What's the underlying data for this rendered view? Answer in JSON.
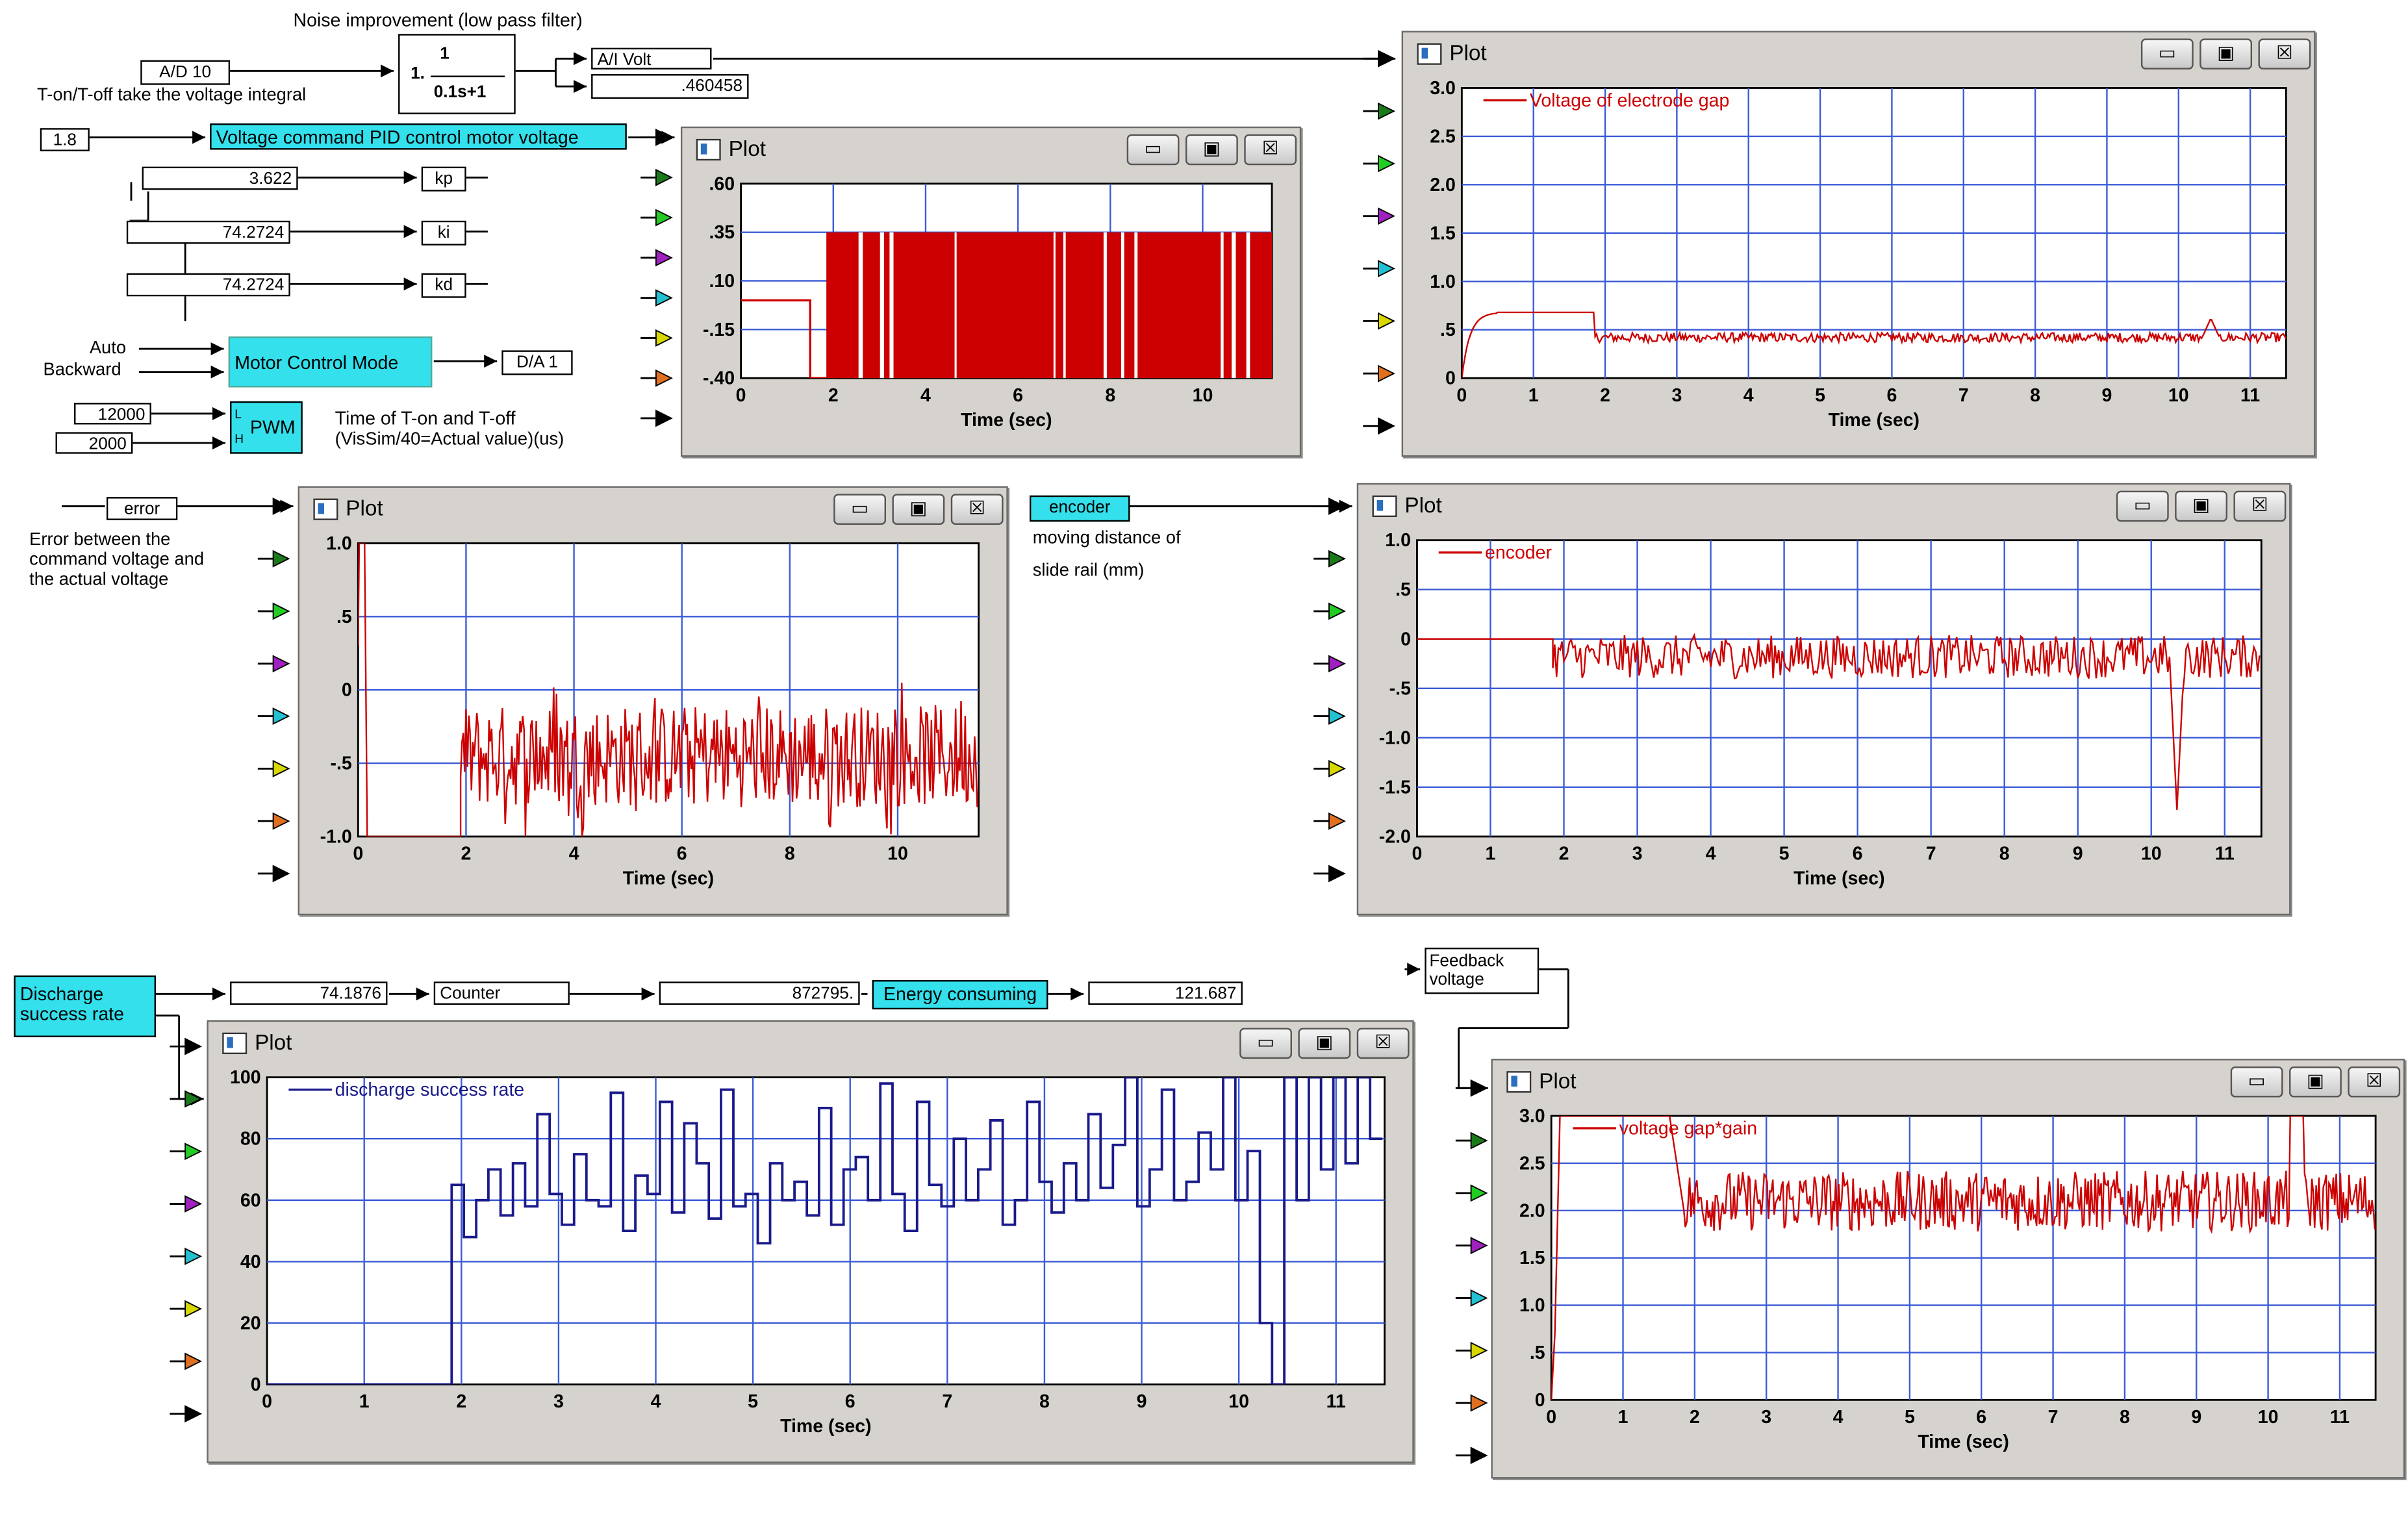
{
  "block_diagram": {
    "noise_title": "Noise improvement (low pass filter)",
    "ad10": "A/D 10",
    "ton_note": "T-on/T-off take the voltage integral",
    "tf_num": "1",
    "tf_prefix": "1.",
    "tf_den": "0.1s+1",
    "ai_volt": "A/I Volt",
    "ai_value": ".460458",
    "cmd_value": "1.8",
    "pid_label": "Voltage command PID control motor voltage",
    "kp_value": "3.622",
    "kp": "kp",
    "ki_value": "74.2724",
    "ki": "ki",
    "kd_value": "74.2724",
    "kd": "kd",
    "auto": "Auto",
    "backward": "Backward",
    "motor_mode": "Motor Control Mode",
    "da1": "D/A 1",
    "pwm_high": "12000",
    "pwm_low": "2000",
    "pwm_l": "L",
    "pwm_h": "H",
    "pwm": "PWM",
    "timing_note_1": "Time of T-on and T-off",
    "timing_note_2": "(VisSim/40=Actual value)(us)",
    "error_block": "error",
    "error_note_1": "Error between the",
    "error_note_2": "command voltage and",
    "error_note_3": "the actual voltage",
    "encoder_block": "encoder",
    "encoder_note_1": "moving distance of",
    "encoder_note_2": "slide rail (mm)",
    "discharge_block_1": "Discharge",
    "discharge_block_2": "success rate",
    "rate_value": "74.1876",
    "counter": "Counter",
    "counter_value": "872795.",
    "energy": "Energy consuming",
    "energy_value": "121.687",
    "feedback_1": "Feedback",
    "feedback_2": "voltage"
  },
  "window": {
    "title": "Plot",
    "minimize": "▭",
    "restore": "▣",
    "close": "☒"
  },
  "colors": {
    "trace_red": "#cc0000",
    "trace_blue": "#1a1a8c",
    "grid": "#3b5bd6",
    "window_bg": "#d6d3ce",
    "cyan_block": "#33e0ec"
  },
  "input_arrow_colors": [
    "#000000",
    "#1a7a1a",
    "#22cc22",
    "#a020c0",
    "#22c0d0",
    "#d8d800",
    "#e07020",
    "#000000"
  ],
  "chart_data": [
    {
      "id": "pwm_plot",
      "type": "line",
      "xlabel": "Time (sec)",
      "xticks": [
        "0",
        "2",
        "4",
        "6",
        "8",
        "10"
      ],
      "yticks": [
        ".60",
        ".35",
        ".10",
        "-.15",
        "-.40"
      ],
      "xlim": [
        0,
        11.5
      ],
      "ylim": [
        -0.4,
        0.6
      ],
      "signal": "pwm_square",
      "series": [
        {
          "name": "",
          "color": "#cc0000",
          "baseline_until": 1.5,
          "baseline": 0.0,
          "dip": [
            1.5,
            1.85,
            -0.4
          ],
          "low": -0.4,
          "high": 0.35,
          "start": 1.85
        }
      ]
    },
    {
      "id": "electrode_gap",
      "type": "line",
      "xlabel": "Time (sec)",
      "xticks": [
        "0",
        "1",
        "2",
        "3",
        "4",
        "5",
        "6",
        "7",
        "8",
        "9",
        "10",
        "11"
      ],
      "yticks": [
        "3.0",
        "2.5",
        "2.0",
        "1.5",
        "1.0",
        ".5",
        "0"
      ],
      "xlim": [
        0,
        11.5
      ],
      "ylim": [
        0,
        3.0
      ],
      "legend_position": "top-left",
      "series": [
        {
          "name": "Voltage of electrode gap",
          "color": "#cc0000",
          "rise_to": 0.68,
          "hold_until": 1.85,
          "settle": 0.42,
          "noise": 0.05,
          "bump_at": 10.45,
          "bump": 0.62
        }
      ]
    },
    {
      "id": "error_plot",
      "type": "line",
      "xlabel": "Time (sec)",
      "xticks": [
        "0",
        "2",
        "4",
        "6",
        "8",
        "10"
      ],
      "yticks": [
        "1.0",
        ".5",
        "0",
        "-.5",
        "-1.0"
      ],
      "xlim": [
        0,
        11.5
      ],
      "ylim": [
        -1.0,
        1.0
      ],
      "series": [
        {
          "name": "",
          "color": "#cc0000",
          "start_value": 1.0,
          "drop_at": 0.12,
          "floor": -1.0,
          "active_from": 1.9,
          "center": -0.45,
          "noise": 0.35
        }
      ]
    },
    {
      "id": "encoder_plot",
      "type": "line",
      "xlabel": "Time (sec)",
      "xticks": [
        "0",
        "1",
        "2",
        "3",
        "4",
        "5",
        "6",
        "7",
        "8",
        "9",
        "10",
        "11"
      ],
      "yticks": [
        "1.0",
        ".5",
        "0",
        "-.5",
        "-1.0",
        "-1.5",
        "-2.0"
      ],
      "xlim": [
        0,
        11.5
      ],
      "ylim": [
        -2.0,
        1.0
      ],
      "legend_position": "top-left",
      "series": [
        {
          "name": "encoder",
          "color": "#cc0000",
          "flat_until": 1.85,
          "center": -0.18,
          "noise": 0.22,
          "spike_at": 10.35,
          "spike": -1.55
        }
      ]
    },
    {
      "id": "discharge_rate",
      "type": "line",
      "xlabel": "Time (sec)",
      "xticks": [
        "0",
        "1",
        "2",
        "3",
        "4",
        "5",
        "6",
        "7",
        "8",
        "9",
        "10",
        "11"
      ],
      "yticks": [
        "100",
        "80",
        "60",
        "40",
        "20",
        "0"
      ],
      "xlim": [
        0,
        11.5
      ],
      "ylim": [
        0,
        100
      ],
      "legend_position": "top-left",
      "series": [
        {
          "name": "discharge success rate",
          "color": "#1a1a8c",
          "zero_until": 1.9,
          "levels": [
            65,
            48,
            60,
            70,
            55,
            72,
            58,
            88,
            62,
            52,
            75,
            60,
            58,
            95,
            50,
            68,
            62,
            92,
            56,
            85,
            72,
            54,
            96,
            58,
            62,
            46,
            72,
            60,
            66,
            55,
            90,
            52,
            70,
            74,
            60,
            98,
            62,
            50,
            92,
            65,
            58,
            80,
            60,
            70,
            86,
            52,
            60,
            92,
            66,
            56,
            72,
            60,
            88,
            64,
            78,
            100,
            58,
            70,
            96,
            60,
            66,
            82,
            70,
            100,
            60,
            76,
            20,
            0,
            100,
            60,
            100,
            70,
            100,
            72,
            100,
            80
          ],
          "dt": 0.126
        }
      ]
    },
    {
      "id": "gap_gain",
      "type": "line",
      "xlabel": "Time (sec)",
      "xticks": [
        "0",
        "1",
        "2",
        "3",
        "4",
        "5",
        "6",
        "7",
        "8",
        "9",
        "10",
        "11"
      ],
      "yticks": [
        "3.0",
        "2.5",
        "2.0",
        "1.5",
        "1.0",
        ".5",
        "0"
      ],
      "xlim": [
        0,
        11.5
      ],
      "ylim": [
        0,
        3.0
      ],
      "legend_position": "top-left",
      "series": [
        {
          "name": "voltage gap*gain",
          "color": "#cc0000",
          "rise_to": 3.0,
          "hold_until": 1.85,
          "center": 2.1,
          "noise": 0.32,
          "bump_at": 10.4,
          "bump": 3.0
        }
      ]
    }
  ]
}
